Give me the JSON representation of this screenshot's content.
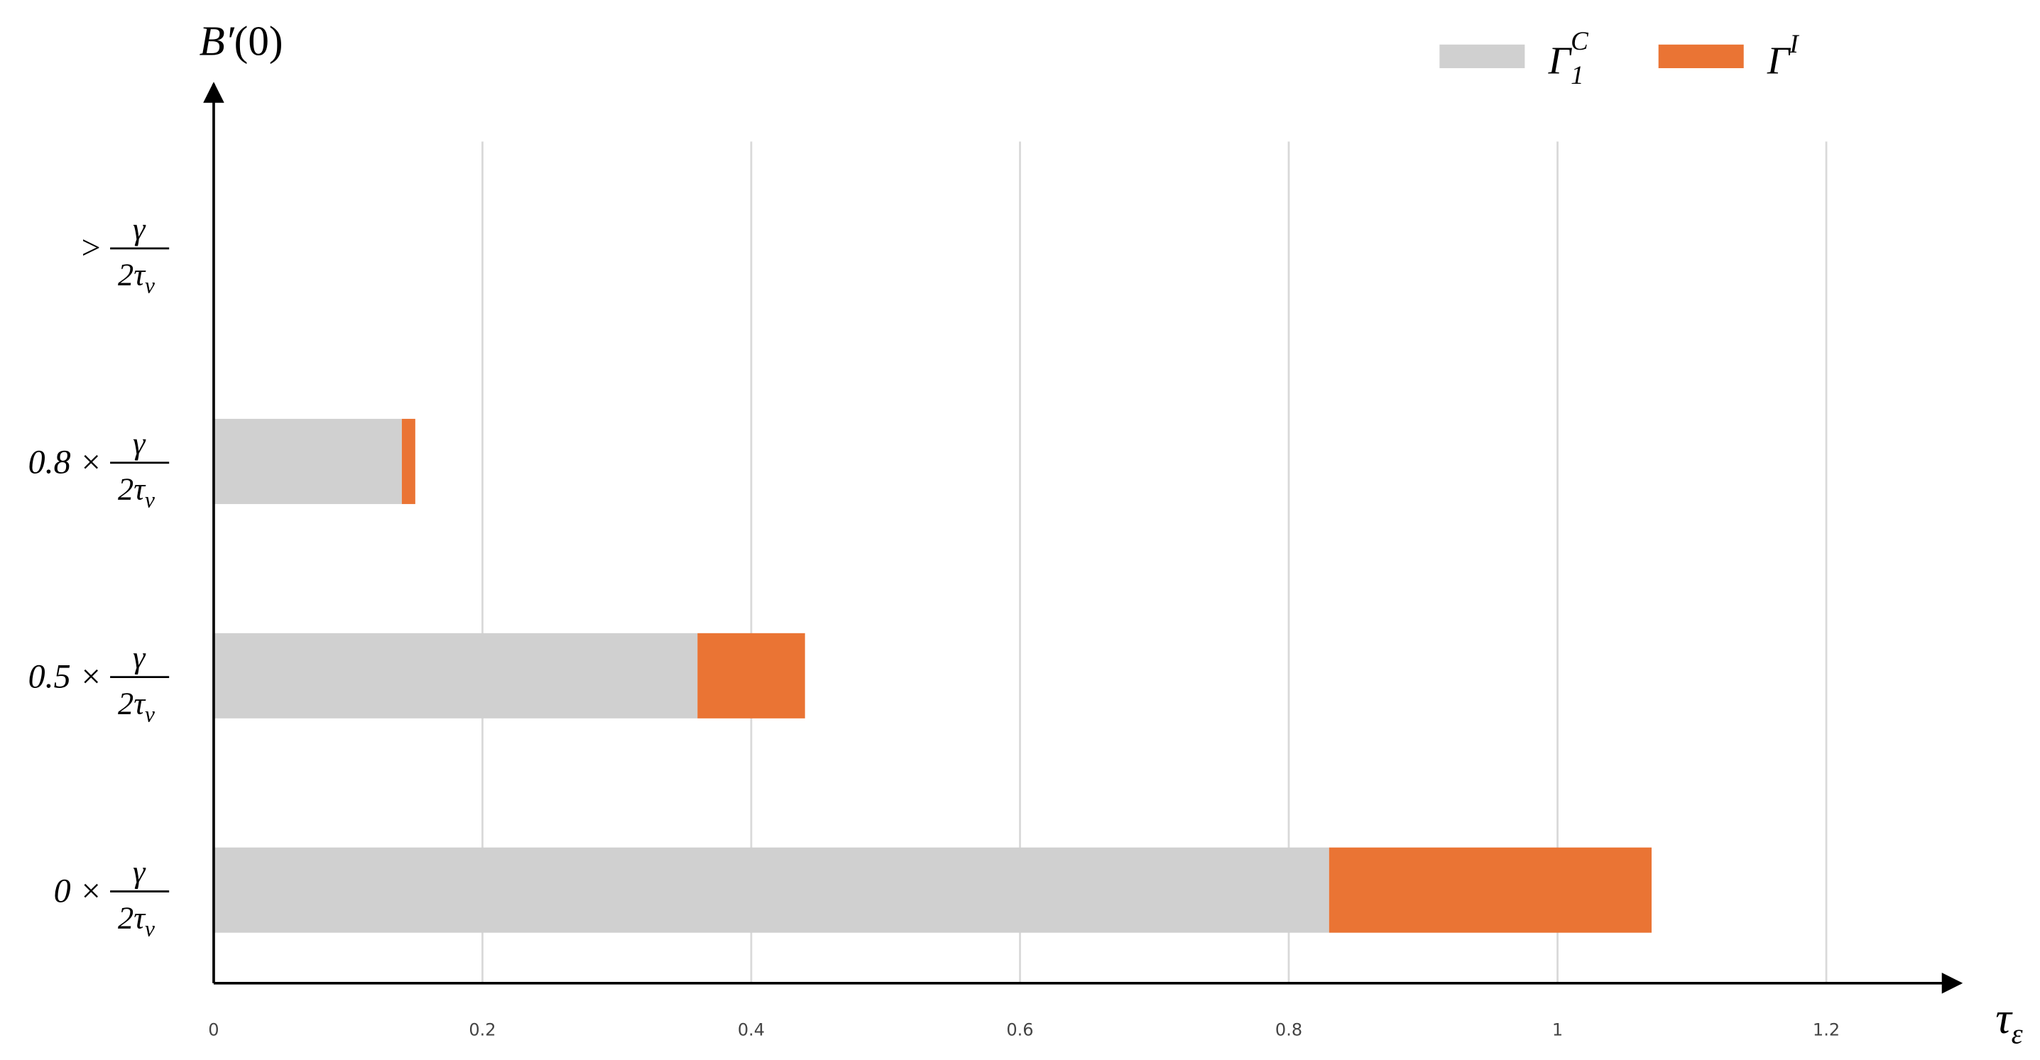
{
  "chart_data": {
    "type": "stacked-barh",
    "y_label": {
      "main": "B′",
      "rest": "(0)"
    },
    "x_label": {
      "main": "τ",
      "sub": "ε"
    },
    "categories": [
      "0 ×",
      "0.5 ×",
      "0.8 ×",
      ">"
    ],
    "category_fraction": {
      "numerator": "γ",
      "denominator": "2τ",
      "denominator_sub": "v"
    },
    "series": [
      {
        "name": "Γ",
        "name_sub": "1",
        "name_sup": "C",
        "color": "#d0d0d0",
        "values": [
          0.83,
          0.36,
          0.14,
          null
        ]
      },
      {
        "name": "Γ",
        "name_sup": "I",
        "color": "#ea7434",
        "values": [
          0.24,
          0.08,
          0.01,
          null
        ]
      }
    ],
    "xlim": [
      0,
      1.3
    ],
    "xticks": [
      0,
      0.2,
      0.4,
      0.6,
      0.8,
      1,
      1.2
    ],
    "grid": true,
    "legend": "top-right"
  }
}
